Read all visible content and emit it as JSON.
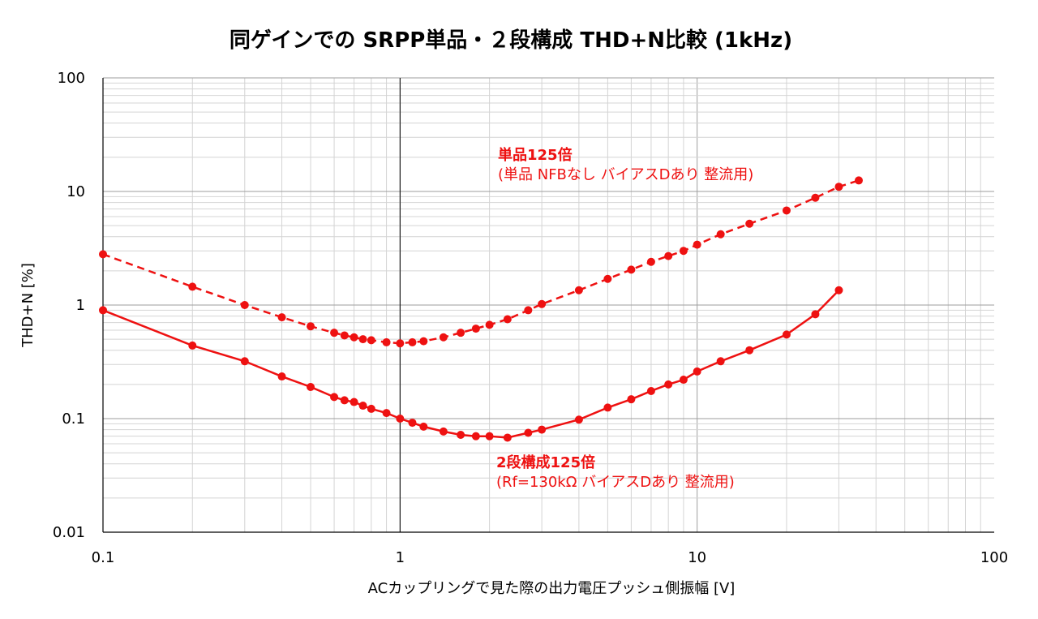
{
  "chart_data": {
    "type": "line",
    "title": "同ゲインでの SRPP単品・２段構成 THD+N比較 (1kHz)",
    "xlabel": "ACカップリングで見た際の出力電圧プッシュ側振幅 [V]",
    "ylabel": "THD+N [%]",
    "x_scale": "log",
    "y_scale": "log",
    "xlim": [
      0.1,
      100
    ],
    "ylim": [
      0.01,
      100
    ],
    "x_ticks": [
      "0.1",
      "1",
      "10",
      "100"
    ],
    "y_ticks": [
      "100",
      "10",
      "1",
      "0.1",
      "0.01"
    ],
    "grid": true,
    "series": [
      {
        "name": "単品125倍",
        "color": "#ee1111",
        "line_style": "dashed",
        "x": [
          0.1,
          0.2,
          0.3,
          0.4,
          0.5,
          0.6,
          0.65,
          0.7,
          0.75,
          0.8,
          0.9,
          1.0,
          1.1,
          1.2,
          1.4,
          1.6,
          1.8,
          2.0,
          2.3,
          2.7,
          3.0,
          4.0,
          5.0,
          6.0,
          7.0,
          8.0,
          9.0,
          10.0,
          12.0,
          15.0,
          20.0,
          25.0,
          30.0,
          35.0
        ],
        "y": [
          2.8,
          1.45,
          1.0,
          0.78,
          0.65,
          0.57,
          0.54,
          0.52,
          0.5,
          0.49,
          0.47,
          0.46,
          0.47,
          0.48,
          0.52,
          0.57,
          0.62,
          0.67,
          0.75,
          0.9,
          1.02,
          1.35,
          1.7,
          2.05,
          2.4,
          2.7,
          3.0,
          3.4,
          4.2,
          5.2,
          6.8,
          8.8,
          11.0,
          12.5
        ],
        "labels": [
          "単品125倍",
          "(単品 NFBなし バイアスDあり 整流用)"
        ]
      },
      {
        "name": "2段構成125倍",
        "color": "#ee1111",
        "line_style": "solid",
        "x": [
          0.1,
          0.2,
          0.3,
          0.4,
          0.5,
          0.6,
          0.65,
          0.7,
          0.75,
          0.8,
          0.9,
          1.0,
          1.1,
          1.2,
          1.4,
          1.6,
          1.8,
          2.0,
          2.3,
          2.7,
          3.0,
          4.0,
          5.0,
          6.0,
          7.0,
          8.0,
          9.0,
          10.0,
          12.0,
          15.0,
          20.0,
          25.0,
          30.0
        ],
        "y": [
          0.9,
          0.44,
          0.32,
          0.235,
          0.19,
          0.155,
          0.145,
          0.14,
          0.13,
          0.122,
          0.112,
          0.1,
          0.092,
          0.085,
          0.077,
          0.072,
          0.07,
          0.07,
          0.068,
          0.075,
          0.08,
          0.098,
          0.125,
          0.148,
          0.175,
          0.2,
          0.22,
          0.26,
          0.32,
          0.4,
          0.55,
          0.83,
          1.35
        ],
        "labels": [
          "2段構成125倍",
          "(Rf=130kΩ バイアスDあり 整流用)"
        ]
      }
    ]
  }
}
